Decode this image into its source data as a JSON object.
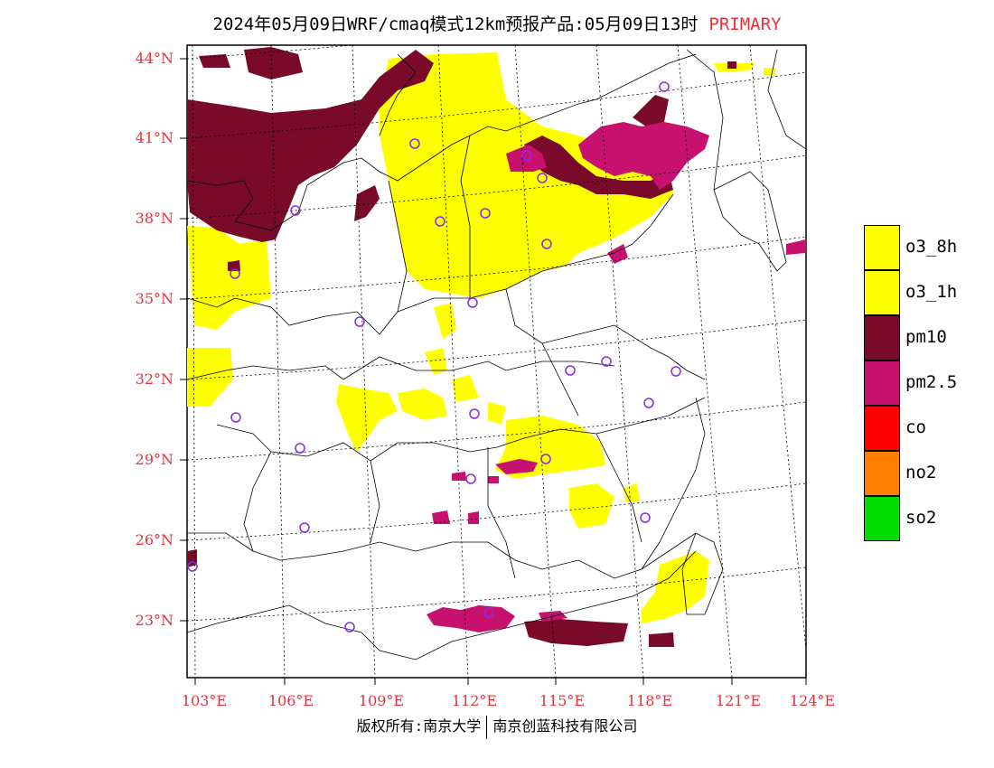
{
  "title": {
    "main": "2024年05月09日WRF/cmaq模式12km预报产品:05月09日13时",
    "tag": "PRIMARY"
  },
  "colors": {
    "o3_8h": "#ffff00",
    "o3_1h": "#ffff00",
    "pm10": "#7a0a2a",
    "pm2_5": "#c8106e",
    "co": "#ff0000",
    "no2": "#ff7f00",
    "so2": "#00dd00",
    "axis_label": "#e8323c",
    "station_marker": "#8a2be2"
  },
  "axes": {
    "lat_labels": [
      "44°N",
      "41°N",
      "38°N",
      "35°N",
      "32°N",
      "29°N",
      "26°N",
      "23°N"
    ],
    "lon_labels": [
      "103°E",
      "106°E",
      "109°E",
      "112°E",
      "115°E",
      "118°E",
      "121°E",
      "124°E"
    ]
  },
  "legend": {
    "items": [
      {
        "label": "o3_8h",
        "color_key": "o3_8h"
      },
      {
        "label": "o3_1h",
        "color_key": "o3_1h"
      },
      {
        "label": "pm10",
        "color_key": "pm10"
      },
      {
        "label": "pm2.5",
        "color_key": "pm2_5"
      },
      {
        "label": "co",
        "color_key": "co"
      },
      {
        "label": "no2",
        "color_key": "no2"
      },
      {
        "label": "so2",
        "color_key": "so2"
      }
    ]
  },
  "footer": {
    "left": "版权所有:南京大学",
    "right": "南京创蓝科技有限公司"
  }
}
